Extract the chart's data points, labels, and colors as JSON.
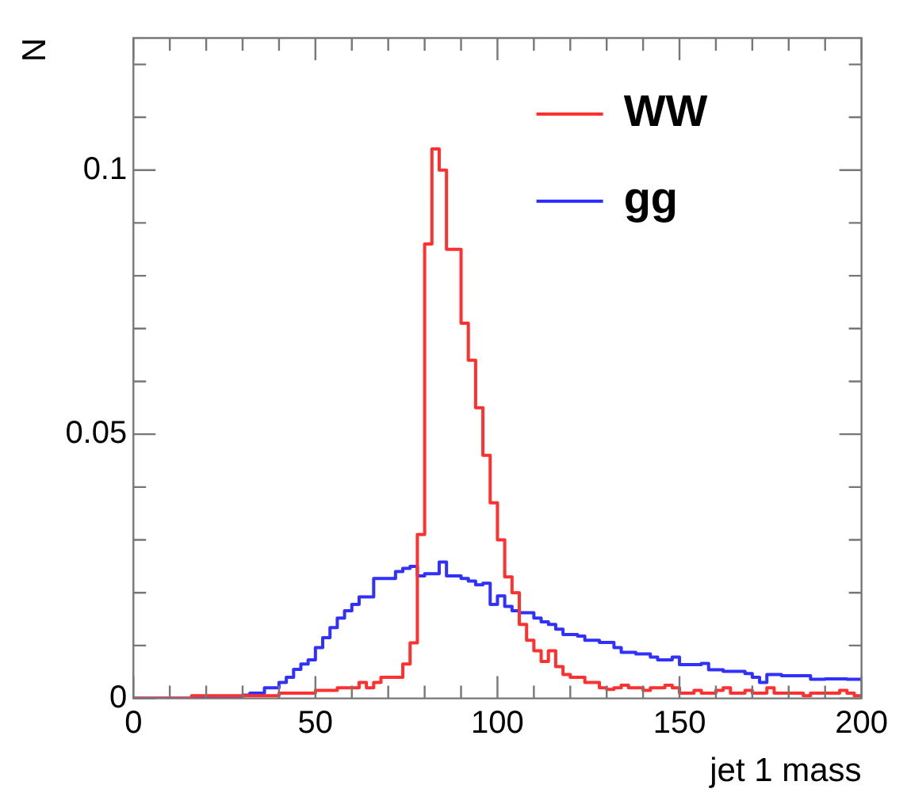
{
  "chart_data": {
    "type": "histogram",
    "xlabel": "jet 1 mass",
    "ylabel": "N",
    "bins": [
      0,
      2,
      4,
      6,
      8,
      10,
      12,
      14,
      16,
      18,
      20,
      22,
      24,
      26,
      28,
      30,
      32,
      34,
      36,
      38,
      40,
      42,
      44,
      46,
      48,
      50,
      52,
      54,
      56,
      58,
      60,
      62,
      64,
      66,
      68,
      70,
      72,
      74,
      76,
      78,
      80,
      82,
      84,
      86,
      88,
      90,
      92,
      94,
      96,
      98,
      100,
      102,
      104,
      106,
      108,
      110,
      112,
      114,
      116,
      118,
      120,
      122,
      124,
      126,
      128,
      130,
      132,
      134,
      136,
      138,
      140,
      142,
      144,
      146,
      148,
      150,
      152,
      154,
      156,
      158,
      160,
      162,
      164,
      166,
      168,
      170,
      172,
      174,
      176,
      178,
      180,
      182,
      184,
      186,
      188,
      190,
      192,
      194,
      196,
      198,
      200
    ],
    "series": [
      {
        "name": "WW",
        "color": "#ff3030",
        "values": [
          0,
          0,
          0,
          0,
          0,
          0,
          0,
          0,
          0.0005,
          0.0005,
          0.0005,
          0.0005,
          0.0005,
          0.0005,
          0.0005,
          0.0005,
          0.0005,
          0.0005,
          0.0005,
          0.0005,
          0.001,
          0.001,
          0.001,
          0.001,
          0.001,
          0.0015,
          0.0015,
          0.0015,
          0.002,
          0.002,
          0.002,
          0.003,
          0.002,
          0.003,
          0.004,
          0.004,
          0.004,
          0.0065,
          0.0105,
          0.031,
          0.086,
          0.104,
          0.1,
          0.085,
          0.085,
          0.071,
          0.064,
          0.055,
          0.046,
          0.037,
          0.03,
          0.023,
          0.02,
          0.014,
          0.011,
          0.009,
          0.007,
          0.009,
          0.006,
          0.0045,
          0.004,
          0.004,
          0.003,
          0.003,
          0.002,
          0.0017,
          0.002,
          0.0025,
          0.002,
          0.002,
          0.0015,
          0.002,
          0.002,
          0.0025,
          0.002,
          0.001,
          0.001,
          0.0015,
          0.001,
          0.001,
          0.0015,
          0.002,
          0.001,
          0.001,
          0.0015,
          0.001,
          0.001,
          0.002,
          0.001,
          0.001,
          0.001,
          0.001,
          0.0005,
          0.001,
          0.001,
          0.001,
          0.001,
          0.0015,
          0.001,
          0.0005
        ]
      },
      {
        "name": "gg",
        "color": "#3030ff",
        "values": [
          0,
          0,
          0,
          0,
          0,
          0,
          0,
          0,
          0,
          0,
          0,
          0,
          0.0002,
          0.0003,
          0.0003,
          0.0006,
          0.001,
          0.001,
          0.002,
          0.002,
          0.003,
          0.004,
          0.0055,
          0.0065,
          0.0073,
          0.0096,
          0.0115,
          0.0134,
          0.0152,
          0.0166,
          0.0178,
          0.0192,
          0.0192,
          0.0227,
          0.0227,
          0.0227,
          0.024,
          0.0246,
          0.025,
          0.0232,
          0.0236,
          0.0236,
          0.0258,
          0.0232,
          0.0232,
          0.0227,
          0.0222,
          0.0215,
          0.0218,
          0.0178,
          0.0194,
          0.0174,
          0.0166,
          0.0162,
          0.0162,
          0.0152,
          0.0145,
          0.014,
          0.0131,
          0.0121,
          0.0121,
          0.0118,
          0.011,
          0.011,
          0.0106,
          0.0106,
          0.0096,
          0.0087,
          0.0087,
          0.0084,
          0.0084,
          0.0078,
          0.0073,
          0.0073,
          0.0078,
          0.0064,
          0.0064,
          0.0064,
          0.0066,
          0.0054,
          0.0054,
          0.0051,
          0.0051,
          0.0051,
          0.0047,
          0.004,
          0.003,
          0.0045,
          0.0045,
          0.0043,
          0.0043,
          0.0043,
          0.0043,
          0.0036,
          0.0036,
          0.0037,
          0.0037,
          0.0037,
          0.0036,
          0.0036
        ]
      }
    ],
    "xlim": [
      0,
      200
    ],
    "ylim": [
      0,
      0.125
    ],
    "xticks": [
      0,
      {
        "value": 10,
        "label": null
      },
      {
        "value": 20,
        "label": null
      },
      {
        "value": 30,
        "label": null
      },
      {
        "value": 40,
        "label": null
      },
      50,
      {
        "value": 60,
        "label": null
      },
      {
        "value": 70,
        "label": null
      },
      {
        "value": 80,
        "label": null
      },
      {
        "value": 90,
        "label": null
      },
      100,
      {
        "value": 110,
        "label": null
      },
      {
        "value": 120,
        "label": null
      },
      {
        "value": 130,
        "label": null
      },
      {
        "value": 140,
        "label": null
      },
      150,
      {
        "value": 160,
        "label": null
      },
      {
        "value": 170,
        "label": null
      },
      {
        "value": 180,
        "label": null
      },
      {
        "value": 190,
        "label": null
      },
      200
    ],
    "yticks": [
      0,
      {
        "value": 0.01,
        "label": null
      },
      {
        "value": 0.02,
        "label": null
      },
      {
        "value": 0.03,
        "label": null
      },
      {
        "value": 0.04,
        "label": null
      },
      0.05,
      {
        "value": 0.06,
        "label": null
      },
      {
        "value": 0.07,
        "label": null
      },
      {
        "value": 0.08,
        "label": null
      },
      {
        "value": 0.09,
        "label": null
      },
      0.1,
      {
        "value": 0.11,
        "label": null
      },
      {
        "value": 0.12,
        "label": null
      }
    ],
    "legend": "top right",
    "line_style": "solid"
  }
}
